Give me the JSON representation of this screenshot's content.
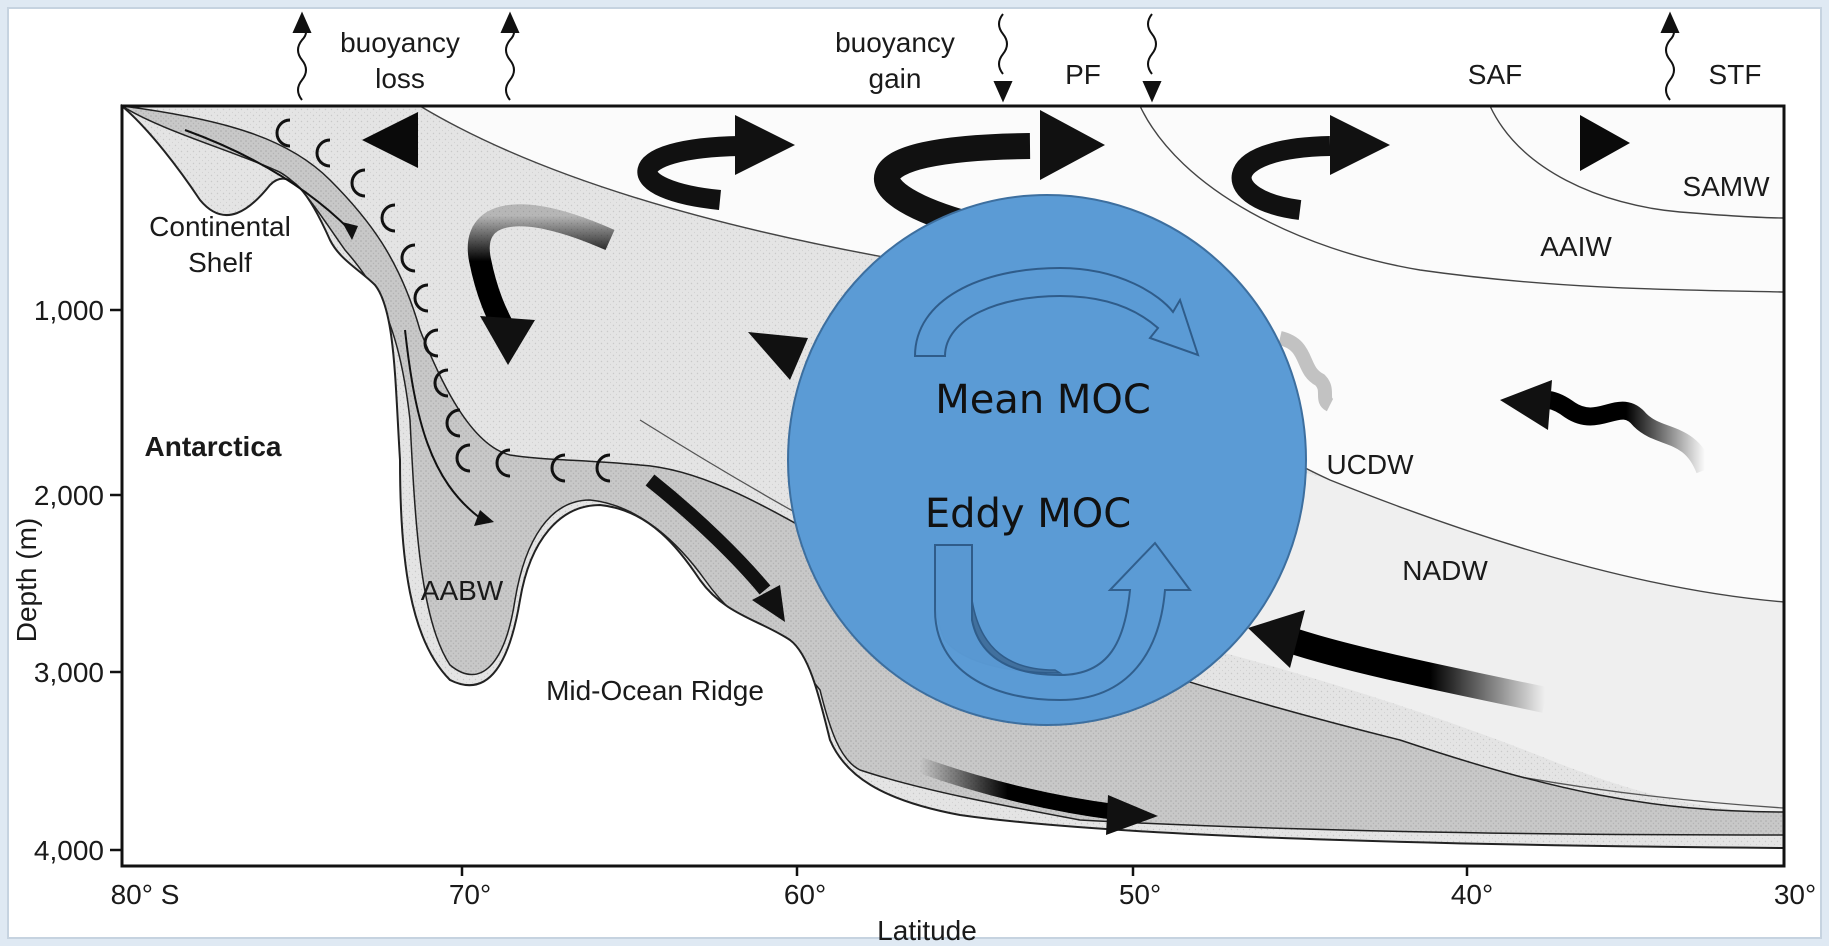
{
  "top_labels": {
    "buoyancy_loss": [
      "buoyancy",
      "loss"
    ],
    "buoyancy_gain": [
      "buoyancy",
      "gain"
    ],
    "pf": "PF",
    "saf": "SAF",
    "stf": "STF"
  },
  "water_masses": {
    "samw": "SAMW",
    "aaiw": "AAIW",
    "ucdw": "UCDW",
    "nadw": "NADW",
    "aabw": "AABW"
  },
  "features": {
    "continental_shelf": [
      "Continental",
      "Shelf"
    ],
    "antarctica": "Antarctica",
    "mid_ocean_ridge": "Mid-Ocean Ridge"
  },
  "axes": {
    "ylabel": "Depth (m)",
    "xlabel": "Latitude",
    "y_ticks": [
      "1,000",
      "2,000",
      "3,000",
      "4,000"
    ],
    "x_ticks": [
      "80° S",
      "70°",
      "60°",
      "50°",
      "40°",
      "30°"
    ]
  },
  "overlay": {
    "mean_label": "Mean MOC",
    "eddy_label": "Eddy MOC",
    "circle_color": "#5b9bd5"
  }
}
